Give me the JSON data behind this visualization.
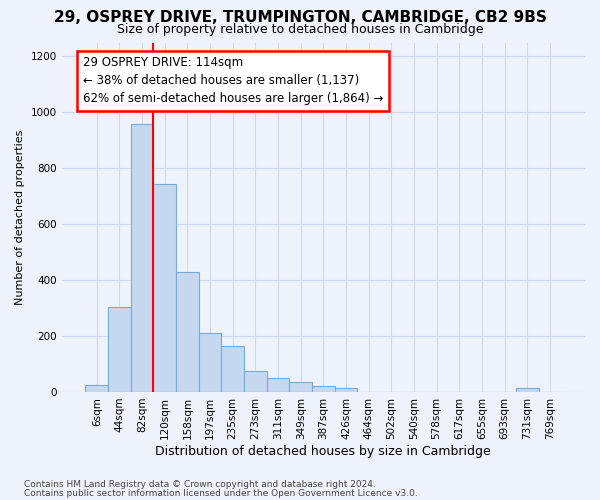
{
  "title1": "29, OSPREY DRIVE, TRUMPINGTON, CAMBRIDGE, CB2 9BS",
  "title2": "Size of property relative to detached houses in Cambridge",
  "xlabel": "Distribution of detached houses by size in Cambridge",
  "ylabel": "Number of detached properties",
  "annotation_title": "29 OSPREY DRIVE: 114sqm",
  "annotation_line1": "← 38% of detached houses are smaller (1,137)",
  "annotation_line2": "62% of semi-detached houses are larger (1,864) →",
  "footer1": "Contains HM Land Registry data © Crown copyright and database right 2024.",
  "footer2": "Contains public sector information licensed under the Open Government Licence v3.0.",
  "bin_labels": [
    "6sqm",
    "44sqm",
    "82sqm",
    "120sqm",
    "158sqm",
    "197sqm",
    "235sqm",
    "273sqm",
    "311sqm",
    "349sqm",
    "387sqm",
    "426sqm",
    "464sqm",
    "502sqm",
    "540sqm",
    "578sqm",
    "617sqm",
    "655sqm",
    "693sqm",
    "731sqm",
    "769sqm"
  ],
  "bar_heights": [
    25,
    305,
    960,
    745,
    430,
    210,
    165,
    75,
    50,
    35,
    20,
    15,
    0,
    0,
    0,
    0,
    0,
    0,
    0,
    15,
    0
  ],
  "bar_color": "#c5d8f0",
  "bar_edge_color": "#7aaad4",
  "vline_color": "red",
  "vline_pos": 2.5,
  "ylim_max": 1250,
  "yticks": [
    0,
    200,
    400,
    600,
    800,
    1000,
    1200
  ],
  "bg_color": "#eef2fb",
  "grid_color": "#d0d8ee",
  "title1_fontsize": 11,
  "title2_fontsize": 9,
  "ylabel_fontsize": 8,
  "xlabel_fontsize": 9,
  "tick_fontsize": 7.5,
  "footer_fontsize": 6.5,
  "ann_fontsize": 8.5
}
